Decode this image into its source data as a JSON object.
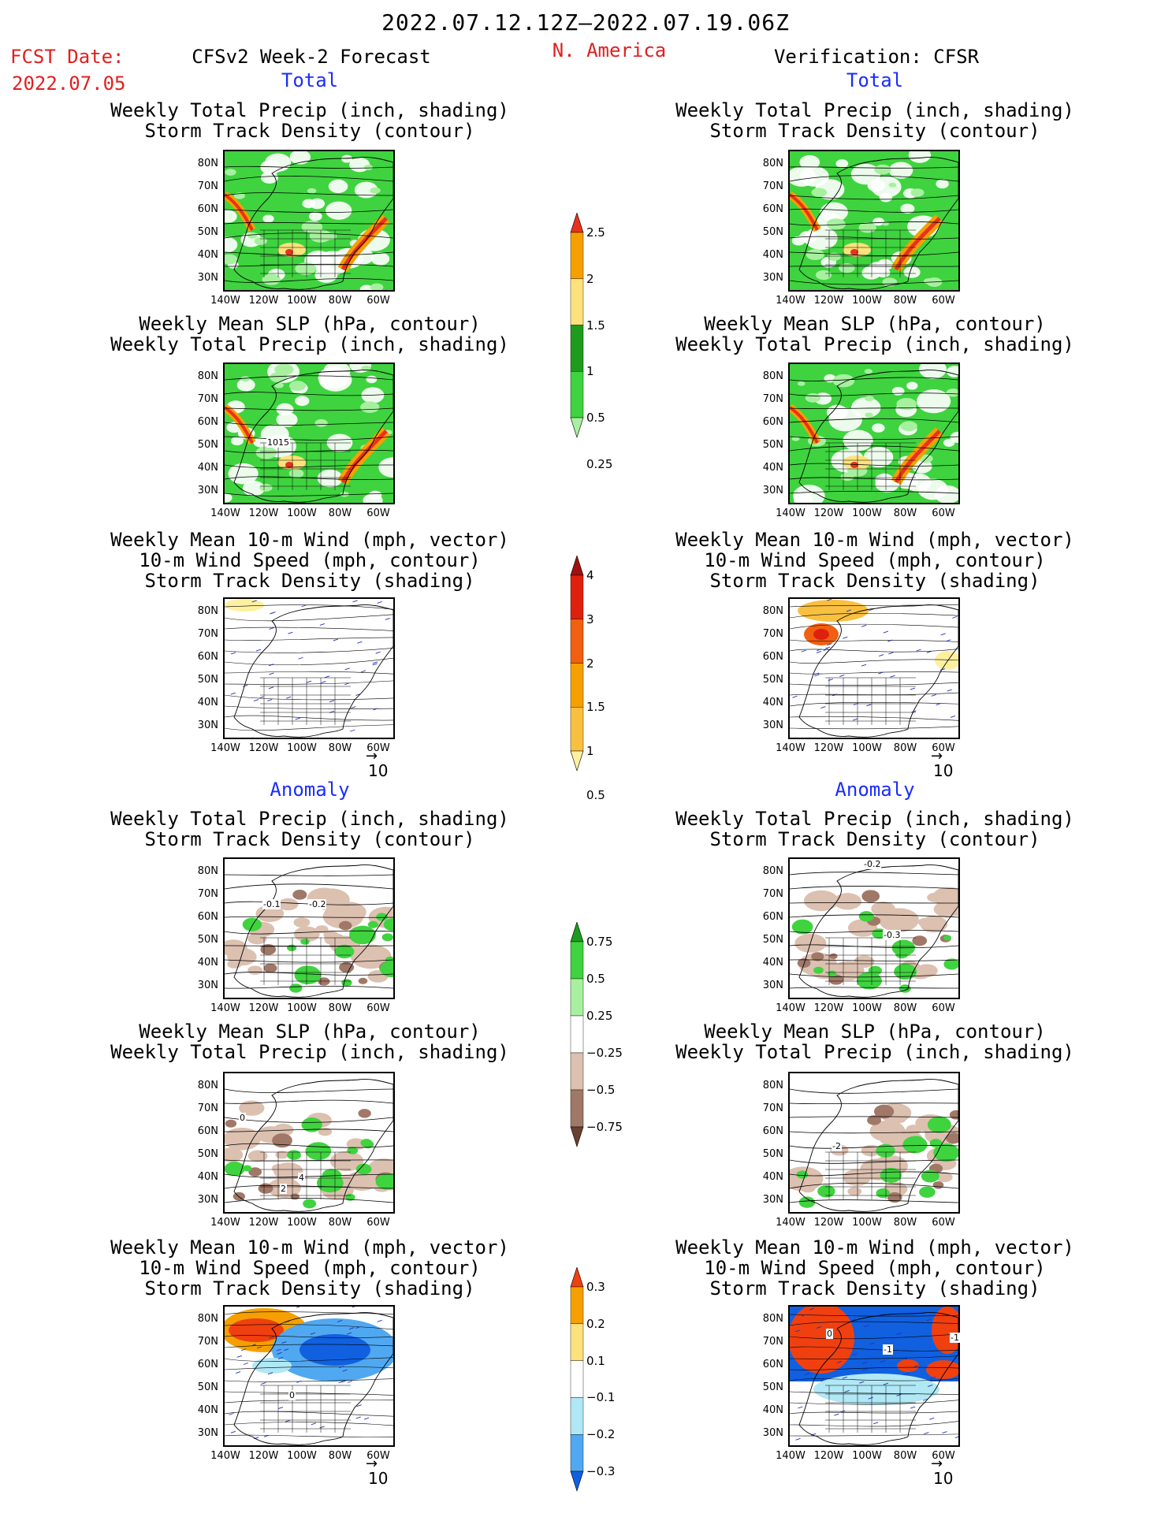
{
  "header": {
    "period": "2022.07.12.12Z‒2022.07.19.06Z",
    "fcst_label": "FCST Date:",
    "fcst_date": "2022.07.05",
    "left_title": "CFSv2 Week-2 Forecast",
    "region": "N. America",
    "right_title": "Verification: CFSR"
  },
  "sections": {
    "total": "Total",
    "anomaly": "Anomaly"
  },
  "panel_titles": {
    "precip_storm": [
      "Weekly Total Precip (inch, shading)",
      "Storm Track Density (contour)"
    ],
    "slp_precip": [
      "Weekly Mean SLP (hPa, contour)",
      "Weekly Total Precip (inch, shading)"
    ],
    "wind_storm": [
      "Weekly Mean 10-m Wind (mph, vector)",
      "10-m Wind Speed (mph, contour)",
      "Storm Track Density (shading)"
    ]
  },
  "axes": {
    "lat_ticks": [
      "80N",
      "70N",
      "60N",
      "50N",
      "40N",
      "30N"
    ],
    "lon_ticks": [
      "140W",
      "120W",
      "100W",
      "80W",
      "60W"
    ]
  },
  "vector_ref": "10",
  "contour_labels": {
    "slp_total_fcst": "1015",
    "anom_precip_fcst_a": "-0.1",
    "anom_precip_fcst_b": "-0.2",
    "anom_precip_obs_a": "-0.2",
    "anom_precip_obs_b": "-0.3",
    "anom_slp_fcst_a": "0",
    "anom_slp_fcst_b": "4",
    "anom_slp_fcst_c": "2",
    "anom_slp_obs_a": "-2",
    "anom_wind_fcst": "0",
    "anom_wind_obs_a": "0",
    "anom_wind_obs_b": "-1",
    "anom_wind_obs_c": "-1"
  },
  "colorbars": {
    "precip_total": {
      "labels": [
        "2.5",
        "2",
        "1.5",
        "1",
        "0.5",
        "0.25"
      ],
      "colors": [
        "#e8321e",
        "#f5a000",
        "#fde27c",
        "#1e9b1e",
        "#3fd33f",
        "#a7f0a0"
      ]
    },
    "storm_total": {
      "labels": [
        "4",
        "3",
        "2",
        "1.5",
        "1",
        "0.5"
      ],
      "colors": [
        "#a01010",
        "#e0200f",
        "#f06010",
        "#f5a000",
        "#f9c040",
        "#fdf0a0"
      ]
    },
    "precip_anom": {
      "labels": [
        "0.75",
        "0.5",
        "0.25",
        "−0.25",
        "−0.5",
        "−0.75"
      ],
      "colors": [
        "#1e9b1e",
        "#3fd33f",
        "#a7f0a0",
        "#ffffff",
        "#dcc0b0",
        "#a07868",
        "#6a4030"
      ]
    },
    "storm_anom": {
      "labels": [
        "0.3",
        "0.2",
        "0.1",
        "−0.1",
        "−0.2",
        "−0.3"
      ],
      "colors": [
        "#f04010",
        "#f5a000",
        "#fde27c",
        "#ffffff",
        "#b0e8f5",
        "#50a8f0",
        "#1060e0"
      ]
    }
  }
}
